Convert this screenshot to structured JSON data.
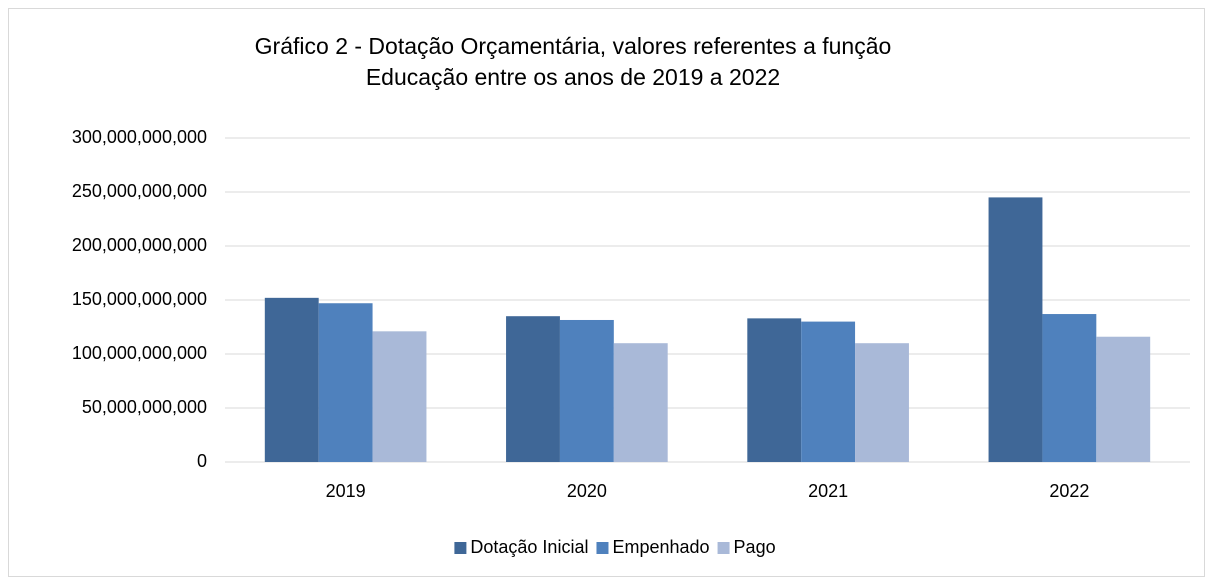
{
  "chart_data": {
    "type": "bar",
    "title": [
      "Gráfico 2 - Dotação Orçamentária, valores referentes a função",
      "Educação entre os anos de 2019 a 2022"
    ],
    "categories": [
      "2019",
      "2020",
      "2021",
      "2022"
    ],
    "series": [
      {
        "name": "Dotação Inicial",
        "color": "#3f6797",
        "values": [
          152000000000,
          135000000000,
          133000000000,
          245000000000
        ]
      },
      {
        "name": "Empenhado",
        "color": "#4f81bd",
        "values": [
          147000000000,
          131500000000,
          130000000000,
          137000000000
        ]
      },
      {
        "name": "Pago",
        "color": "#a9b9d8",
        "values": [
          121000000000,
          110000000000,
          110000000000,
          116000000000
        ]
      }
    ],
    "ylim": [
      0,
      300000000000
    ],
    "yticks": [
      0,
      {
        "value": 50000000000,
        "label": "50,000,000,000"
      },
      {
        "value": 100000000000,
        "label": "100,000,000,000"
      },
      {
        "value": 150000000000,
        "label": "150,000,000,000"
      },
      {
        "value": 200000000000,
        "label": "200,000,000,000"
      },
      {
        "value": 250000000000,
        "label": "250,000,000,000"
      },
      {
        "value": 300000000000,
        "label": "300,000,000,000"
      }
    ],
    "grid": true,
    "legend": "bottom"
  }
}
